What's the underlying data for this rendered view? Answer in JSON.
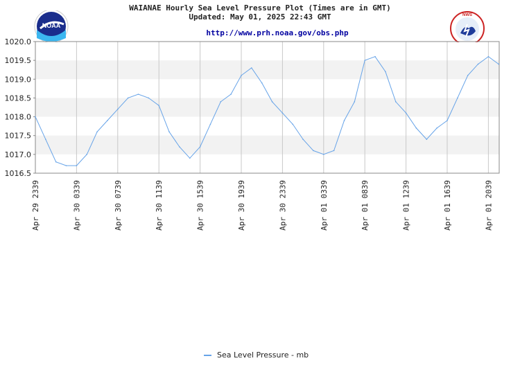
{
  "header": {
    "title": "WAIANAE Hourly Sea Level Pressure Plot (Times are in GMT)",
    "updated": "Updated: May 01, 2025 22:43 GMT",
    "url": "http://www.prh.noaa.gov/obs.php"
  },
  "logos": {
    "left": {
      "text": "NOAA",
      "icon": "noaa-logo"
    },
    "right": {
      "text": "NATIONAL WEATHER SERVICE",
      "icon": "nws-logo"
    }
  },
  "colors": {
    "line": "#66a3e8",
    "band": "#f2f2f2",
    "grid": "#c8c8c8"
  },
  "chart_data": {
    "type": "line",
    "title": "WAIANAE Hourly Sea Level Pressure Plot (Times are in GMT)",
    "ylim": [
      1016.5,
      1020.0
    ],
    "yticks": [
      "1020.0",
      "1019.5",
      "1019.0",
      "1018.5",
      "1018.0",
      "1017.5",
      "1017.0",
      "1016.5"
    ],
    "xticks": [
      "Apr 29 2339",
      "Apr 30 0339",
      "Apr 30 0739",
      "Apr 30 1139",
      "Apr 30 1539",
      "Apr 30 1939",
      "Apr 30 2339",
      "Apr 01 0339",
      "Apr 01 0839",
      "Apr 01 1239",
      "Apr 01 1639",
      "Apr 01 2039"
    ],
    "series": [
      {
        "name": "Sea Level Pressure - mb",
        "values": [
          1018.0,
          1017.4,
          1016.8,
          1016.7,
          1016.7,
          1017.0,
          1017.6,
          1017.9,
          1018.2,
          1018.5,
          1018.6,
          1018.5,
          1018.3,
          1017.6,
          1017.2,
          1016.9,
          1017.2,
          1017.8,
          1018.4,
          1018.6,
          1019.1,
          1019.3,
          1018.9,
          1018.4,
          1018.1,
          1017.8,
          1017.4,
          1017.1,
          1017.0,
          1017.1,
          1017.9,
          1018.4,
          1019.5,
          1019.6,
          1019.2,
          1018.4,
          1018.1,
          1017.7,
          1017.4,
          1017.7,
          1017.9,
          1018.5,
          1019.1,
          1019.4,
          1019.6,
          1019.4
        ]
      }
    ],
    "grid": true,
    "legend_position": "bottom-center"
  }
}
